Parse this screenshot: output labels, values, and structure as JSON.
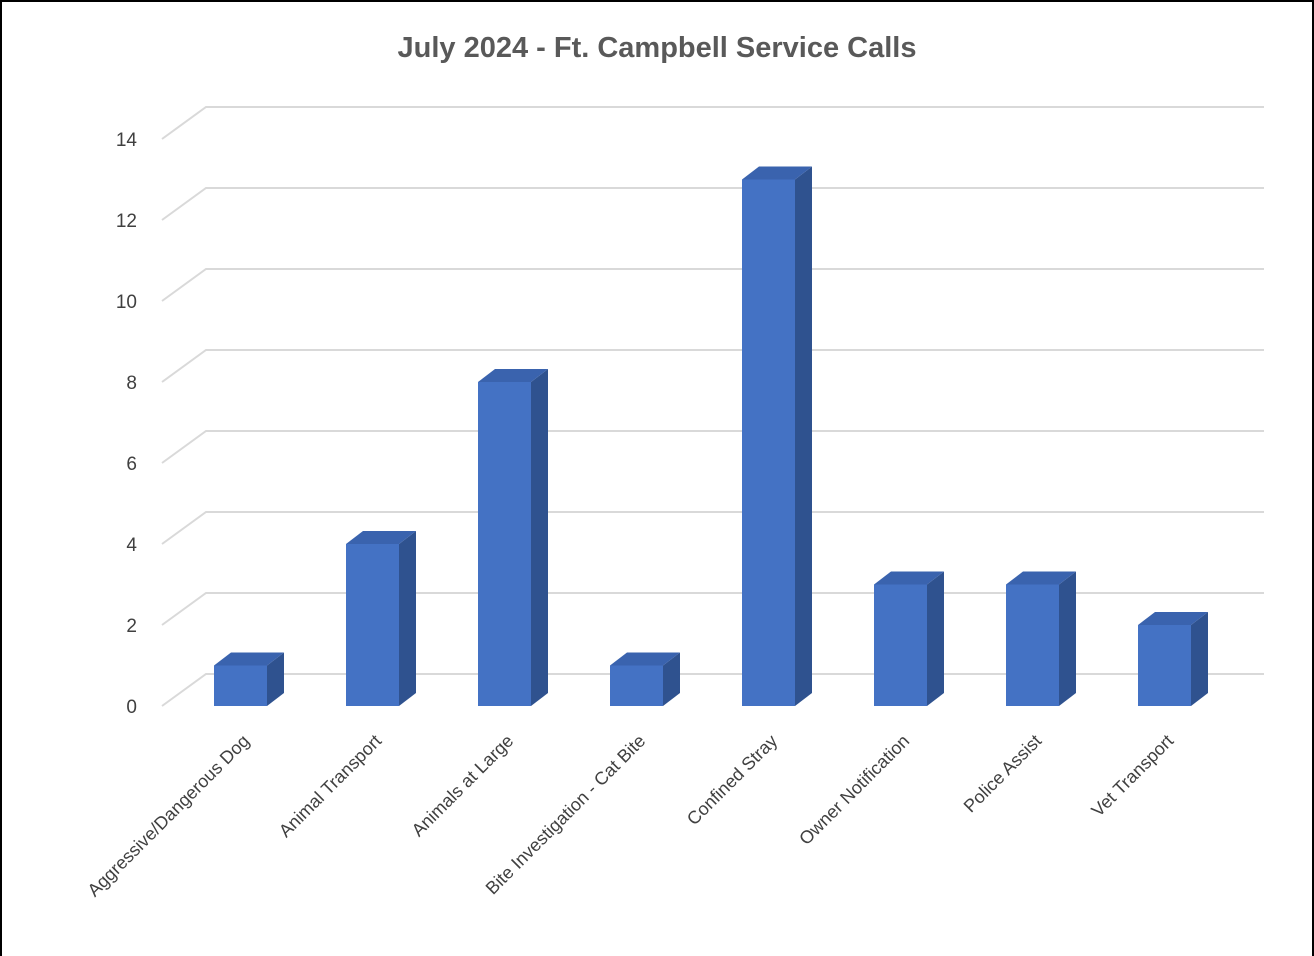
{
  "chart_data": {
    "type": "bar",
    "title": "July 2024 - Ft. Campbell Service Calls",
    "categories": [
      "Aggressive/Dangerous Dog",
      "Animal Transport",
      "Animals at Large",
      "Bite Investigation - Cat Bite",
      "Confined Stray",
      "Owner Notification",
      "Police Assist",
      "Vet Transport"
    ],
    "values": [
      1,
      4,
      8,
      1,
      13,
      3,
      3,
      2
    ],
    "ylim": [
      0,
      14
    ],
    "yticks": [
      "0",
      "2",
      "4",
      "6",
      "8",
      "10",
      "12",
      "14"
    ],
    "xlabel": "",
    "ylabel": "",
    "grid": true,
    "legend": "none",
    "style": "3d-column",
    "colors": {
      "bar_front": "#4472C4",
      "bar_side": "#2F528F",
      "bar_top": "#3A63AE",
      "grid": "#D9D9D9",
      "text": "#404040",
      "title": "#595959"
    }
  }
}
